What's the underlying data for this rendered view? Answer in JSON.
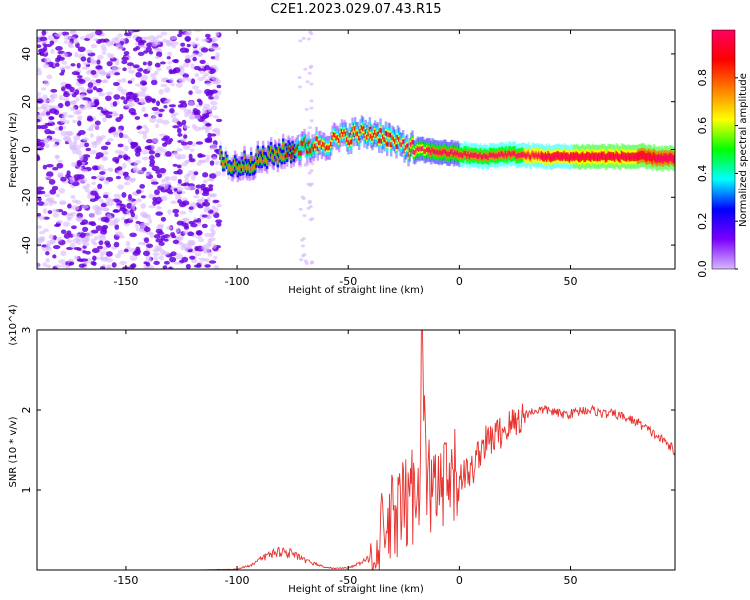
{
  "title": "C2E1.2023.029.07.43.R15",
  "colors": {
    "snr_line": "#e8322e",
    "frame": "#000000",
    "speckle_dark": "#6a00e0",
    "speckle_light": "#d9b8ff"
  },
  "colorbar": {
    "label": "Normalized spectral amplitude",
    "ticks": [
      "0.0",
      "0.2",
      "0.4",
      "0.6",
      "0.8"
    ],
    "tick_values": [
      0.0,
      0.2,
      0.4,
      0.6,
      0.8
    ],
    "range": [
      0,
      1
    ],
    "colormap": [
      "#d8b8ff",
      "#7a00ff",
      "#0000ff",
      "#00ffff",
      "#00ff00",
      "#ffff00",
      "#ff8000",
      "#ff0000",
      "#ff0060"
    ]
  },
  "chart_data": [
    {
      "type": "heatmap",
      "title": "C2E1.2023.029.07.43.R15",
      "xlabel": "Height of straight line (km)",
      "ylabel": "Frequency (Hz)",
      "xlim": [
        -190,
        97
      ],
      "ylim": [
        -50,
        50
      ],
      "x_ticks": [
        -150,
        -100,
        -50,
        0,
        50
      ],
      "y_ticks": [
        -40,
        -20,
        0,
        20,
        40
      ],
      "ridge": {
        "x": [
          -105,
          -90,
          -75,
          -60,
          -50,
          -42,
          -35,
          -28,
          -20,
          -10,
          0,
          10,
          20,
          40,
          60,
          80,
          97
        ],
        "frequency": [
          -8,
          -4,
          0,
          3,
          6,
          7,
          6,
          2,
          0,
          -1,
          -2,
          -3,
          -2,
          -3,
          -3,
          -3,
          -4
        ]
      },
      "noise_region_x": [
        -190,
        -108
      ]
    },
    {
      "type": "line",
      "xlabel": "Height of straight line (km)",
      "ylabel": "SNR (10 * v/v)",
      "y_multiplier": "(x10^4)",
      "xlim": [
        -190,
        97
      ],
      "ylim": [
        0,
        3
      ],
      "x_ticks": [
        -150,
        -100,
        -50,
        0,
        50
      ],
      "y_ticks": [
        1,
        2,
        3
      ],
      "series": [
        {
          "x": [
            -190,
            -120,
            -100,
            -95,
            -90,
            -85,
            -80,
            -75,
            -70,
            -65,
            -60,
            -55,
            -50,
            -45,
            -40,
            -35,
            -30,
            -25,
            -22,
            -20,
            -18,
            -17,
            -15,
            -12,
            -10,
            -5,
            0,
            5,
            10,
            15,
            20,
            25,
            30,
            35,
            40,
            45,
            50,
            55,
            60,
            65,
            70,
            75,
            80,
            85,
            90,
            95,
            97
          ],
          "values": [
            0.0,
            0.0,
            0.01,
            0.05,
            0.12,
            0.2,
            0.24,
            0.2,
            0.12,
            0.08,
            0.03,
            0.02,
            0.03,
            0.08,
            0.15,
            0.35,
            0.6,
            0.75,
            0.9,
            1.0,
            1.05,
            3.05,
            1.1,
            1.0,
            0.95,
            1.0,
            1.2,
            1.2,
            1.55,
            1.65,
            1.75,
            1.85,
            1.95,
            2.0,
            2.0,
            1.95,
            1.95,
            2.0,
            2.0,
            1.95,
            1.95,
            1.9,
            1.85,
            1.75,
            1.65,
            1.55,
            1.45
          ]
        }
      ]
    }
  ]
}
